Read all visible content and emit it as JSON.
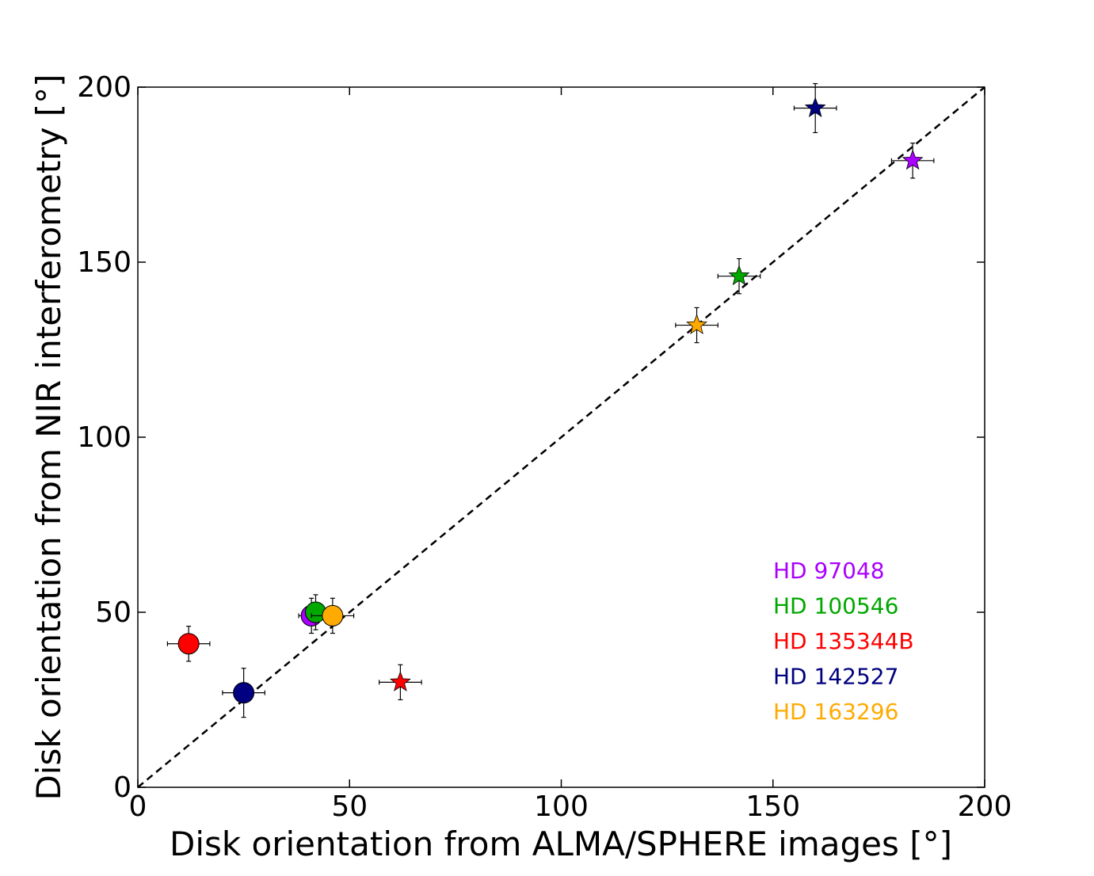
{
  "chart_data": {
    "type": "scatter",
    "title": "",
    "xlabel": "Disk orientation from ALMA/SPHERE images [°]",
    "ylabel": "Disk orientation from NIR interferometry [°]",
    "xlim": [
      0,
      200
    ],
    "ylim": [
      0,
      200
    ],
    "xticks": [
      0,
      50,
      100,
      150,
      200
    ],
    "yticks": [
      0,
      50,
      100,
      150,
      200
    ],
    "grid": false,
    "reference_line": {
      "type": "dashed",
      "slope": 1,
      "intercept": 0
    },
    "legend_placement": "lower-right",
    "series": [
      {
        "name": "HD 97048",
        "color": "#aa00ff",
        "points": [
          {
            "marker": "circle",
            "x": 41,
            "y": 49,
            "xerr": 3,
            "yerr": 5
          },
          {
            "marker": "star",
            "x": 183,
            "y": 179,
            "xerr": 5,
            "yerr": 5
          }
        ]
      },
      {
        "name": "HD 100546",
        "color": "#00a800",
        "points": [
          {
            "marker": "circle",
            "x": 42,
            "y": 50,
            "xerr": 2,
            "yerr": 5
          },
          {
            "marker": "star",
            "x": 142,
            "y": 146,
            "xerr": 5,
            "yerr": 5
          }
        ]
      },
      {
        "name": "HD 135344B",
        "color": "#ff0000",
        "points": [
          {
            "marker": "circle",
            "x": 12,
            "y": 41,
            "xerr": 5,
            "yerr": 5
          },
          {
            "marker": "star",
            "x": 62,
            "y": 30,
            "xerr": 5,
            "yerr": 5
          }
        ]
      },
      {
        "name": "HD 142527",
        "color": "#000080",
        "points": [
          {
            "marker": "circle",
            "x": 25,
            "y": 27,
            "xerr": 5,
            "yerr": 7
          },
          {
            "marker": "star",
            "x": 160,
            "y": 194,
            "xerr": 5,
            "yerr": 7
          }
        ]
      },
      {
        "name": "HD 163296",
        "color": "#ffaa00",
        "points": [
          {
            "marker": "circle",
            "x": 46,
            "y": 49,
            "xerr": 5,
            "yerr": 5
          },
          {
            "marker": "star",
            "x": 132,
            "y": 132,
            "xerr": 5,
            "yerr": 5
          }
        ]
      }
    ]
  }
}
